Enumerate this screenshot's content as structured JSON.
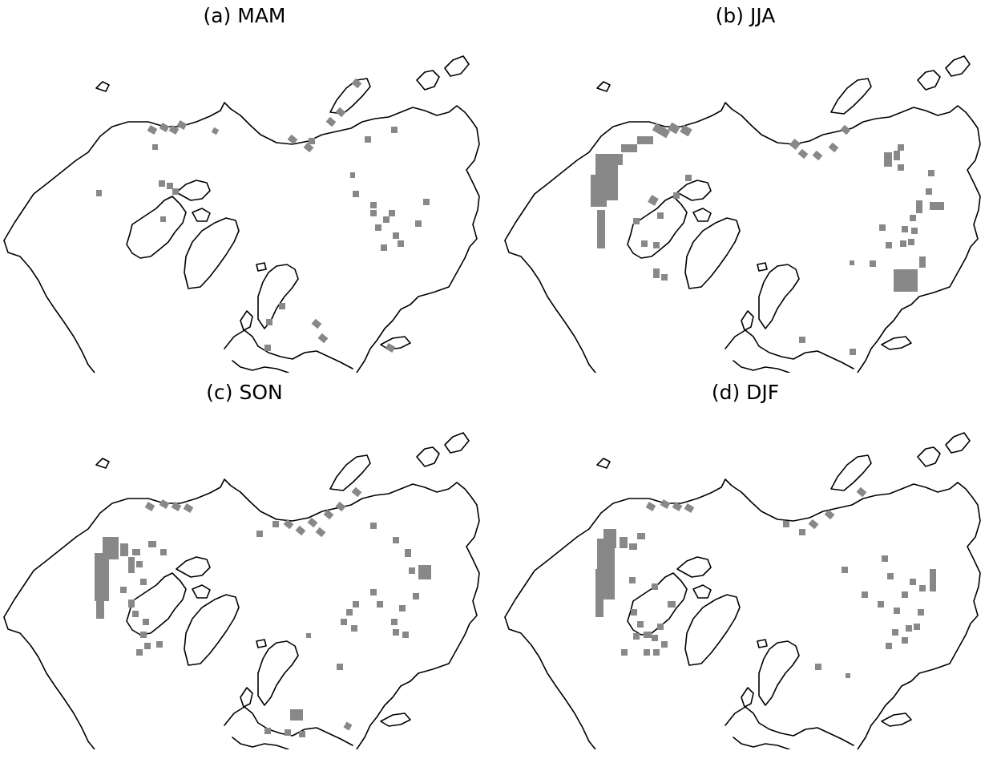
{
  "figure": {
    "panels": [
      {
        "title": "(a)  MAM"
      },
      {
        "title": "(b)  JJA"
      },
      {
        "title": "(c)  SON"
      },
      {
        "title": "(d) DJF"
      }
    ]
  },
  "colors": {
    "coastline": "#000000",
    "shading": "#888888",
    "background": "#ffffff"
  }
}
